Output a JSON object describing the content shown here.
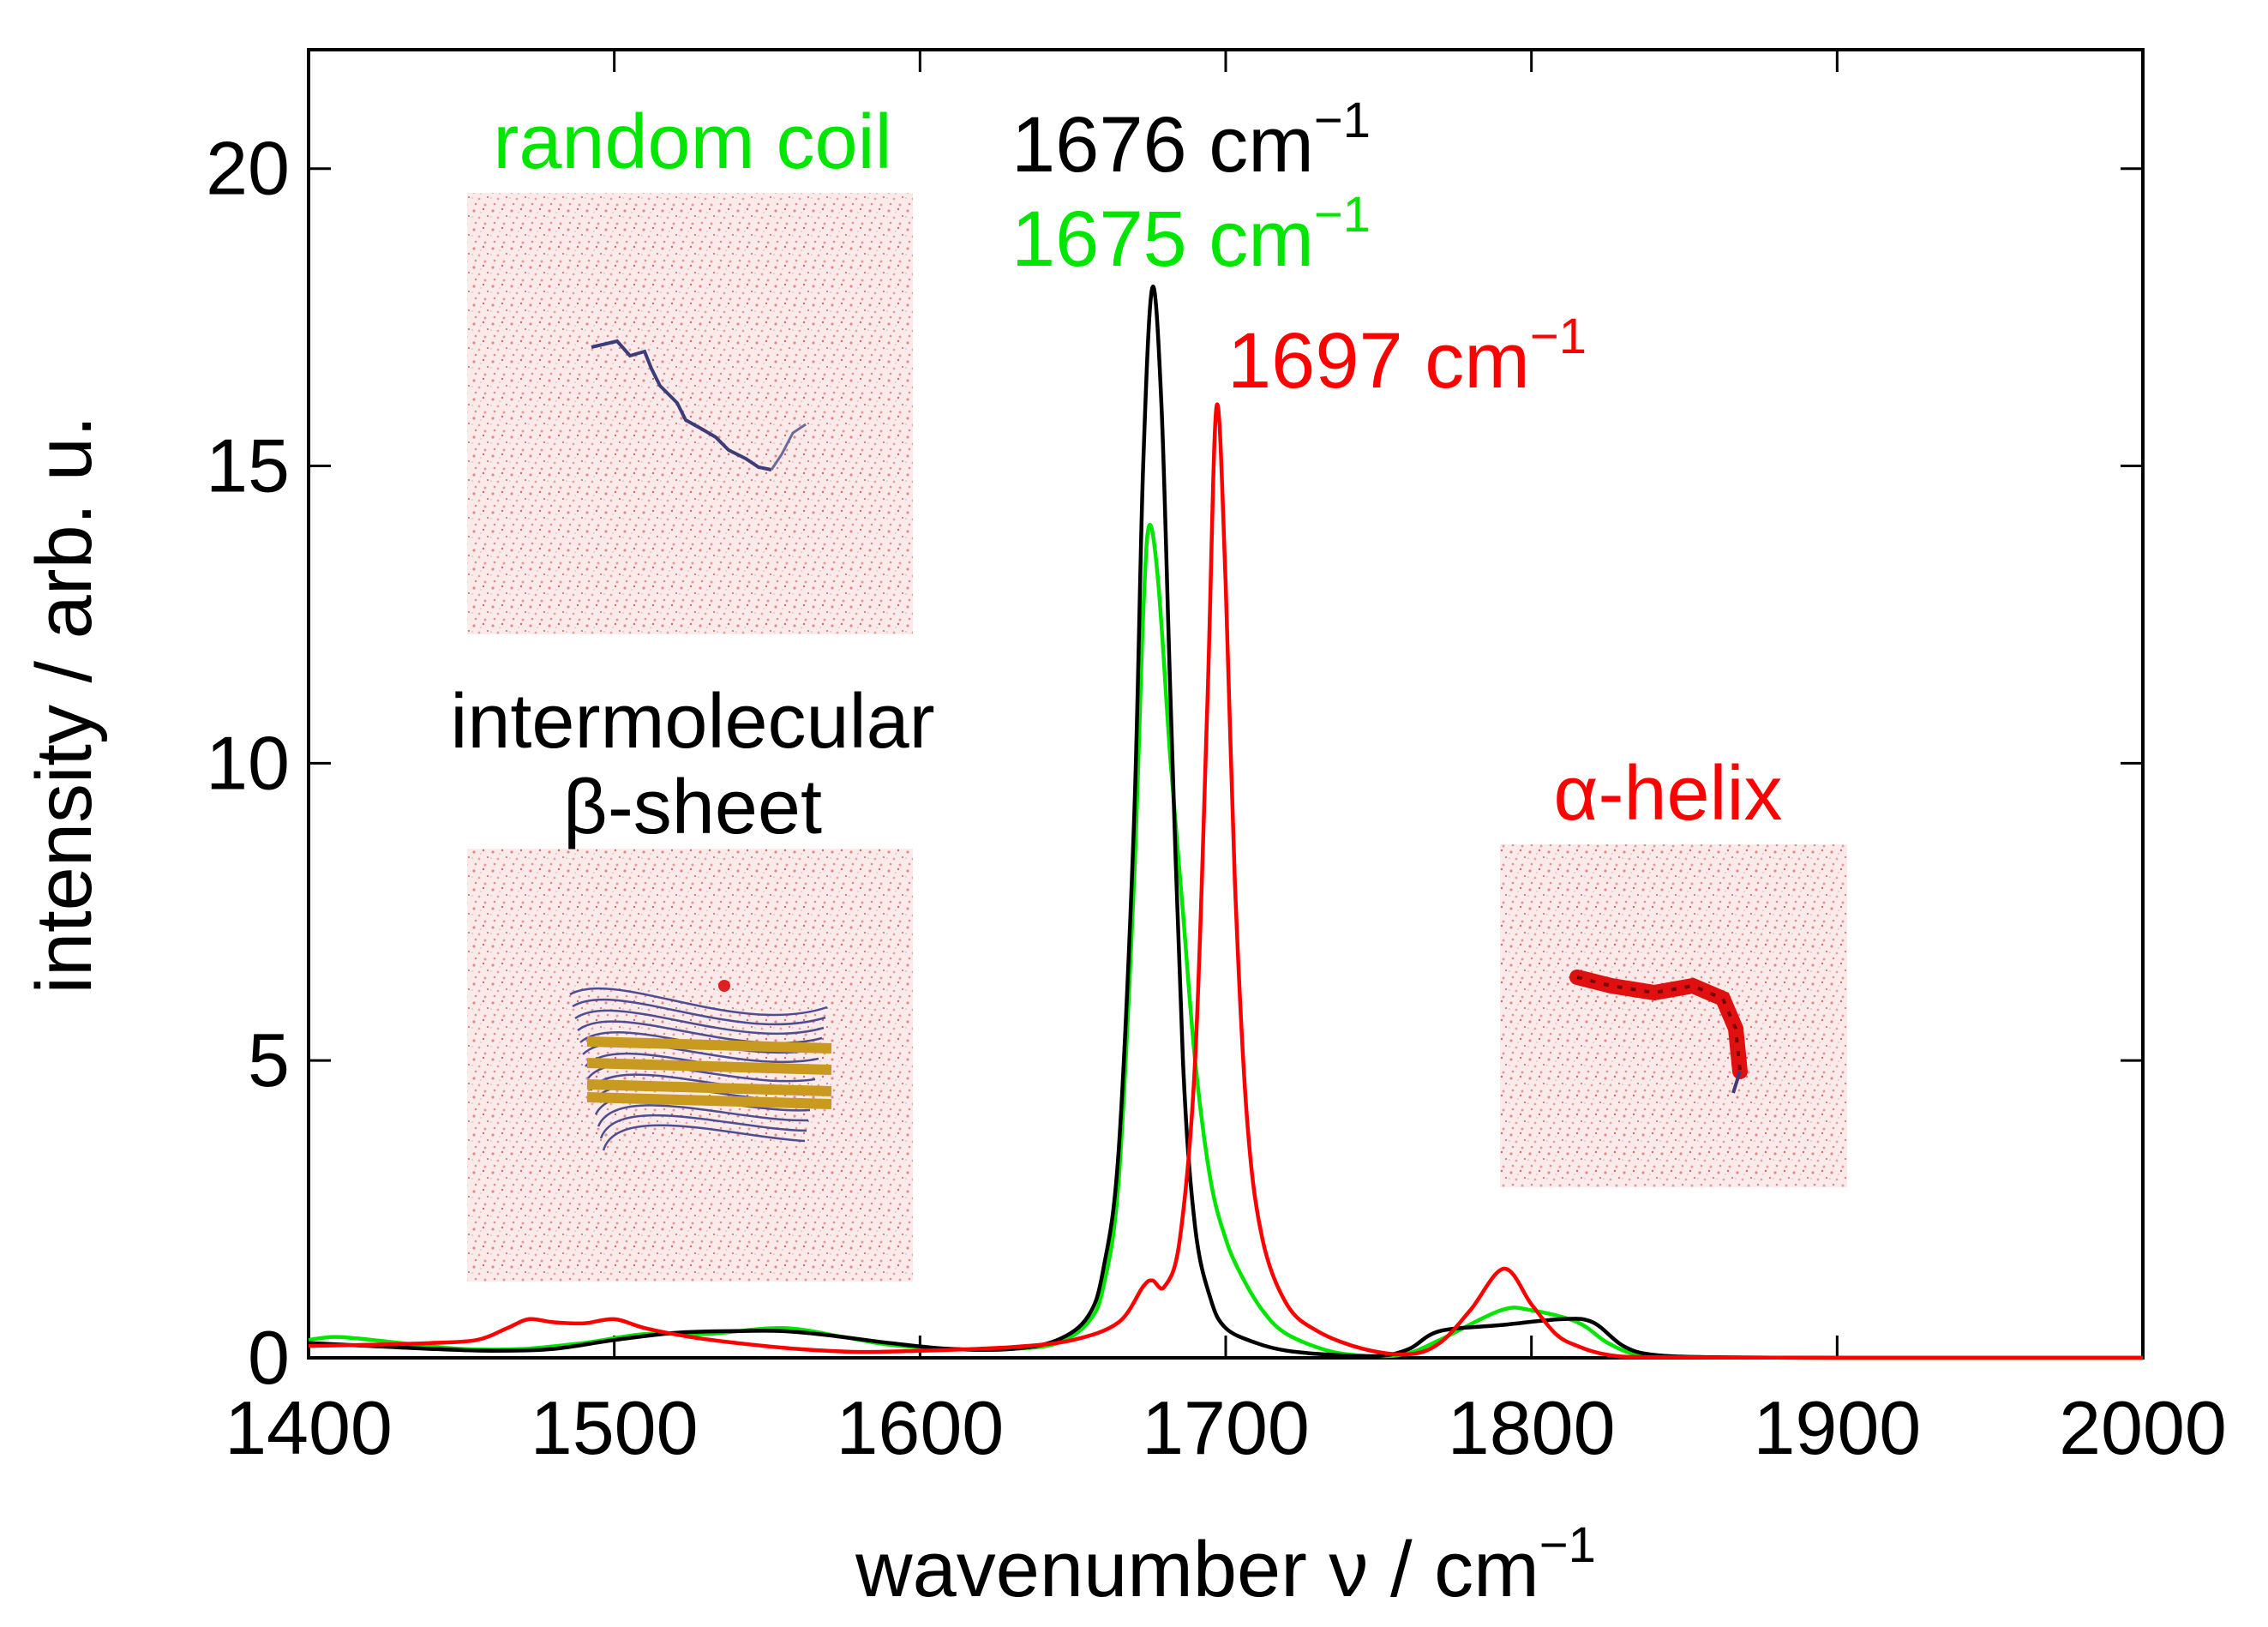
{
  "chart_data": {
    "type": "line",
    "title": "",
    "xlabel": "wavenumber ν / cm",
    "xlabel_sup": "−1",
    "ylabel": "intensity / arb. u.",
    "xlim": [
      1400,
      2000
    ],
    "ylim": [
      0,
      22
    ],
    "x_ticks": [
      1400,
      1500,
      1600,
      1700,
      1800,
      1900,
      2000
    ],
    "x_tick_labels": [
      "1400",
      "1500",
      "1600",
      "1700",
      "1800",
      "1900",
      "2000"
    ],
    "y_ticks": [
      0,
      5,
      10,
      15,
      20
    ],
    "y_tick_labels": [
      "0",
      "5",
      "10",
      "15",
      "20"
    ],
    "grid": false,
    "series": [
      {
        "name": "intermolecular β-sheet",
        "color": "#000000",
        "x": [
          1400,
          1420,
          1440,
          1460,
          1480,
          1500,
          1520,
          1540,
          1555,
          1570,
          1590,
          1610,
          1630,
          1645,
          1655,
          1660,
          1665,
          1670,
          1673,
          1676,
          1679,
          1682,
          1686,
          1690,
          1695,
          1700,
          1710,
          1720,
          1735,
          1750,
          1760,
          1770,
          1790,
          1810,
          1820,
          1830,
          1840,
          1860,
          1900,
          2000
        ],
        "y": [
          0.25,
          0.2,
          0.15,
          0.12,
          0.15,
          0.3,
          0.42,
          0.45,
          0.45,
          0.38,
          0.25,
          0.15,
          0.15,
          0.3,
          0.7,
          1.5,
          3.5,
          9.0,
          15.0,
          18.0,
          16.0,
          11.0,
          5.0,
          2.2,
          1.0,
          0.5,
          0.25,
          0.12,
          0.05,
          0.03,
          0.15,
          0.45,
          0.55,
          0.65,
          0.6,
          0.2,
          0.05,
          0.01,
          0.0,
          0.0
        ]
      },
      {
        "name": "random coil",
        "color": "#00e600",
        "x": [
          1400,
          1410,
          1430,
          1450,
          1470,
          1490,
          1510,
          1530,
          1555,
          1575,
          1590,
          1610,
          1630,
          1645,
          1655,
          1660,
          1665,
          1670,
          1673,
          1675,
          1678,
          1682,
          1686,
          1690,
          1695,
          1700,
          1705,
          1712,
          1720,
          1735,
          1750,
          1760,
          1770,
          1790,
          1800,
          1815,
          1825,
          1835,
          1850,
          1900,
          2000
        ],
        "y": [
          0.3,
          0.35,
          0.25,
          0.15,
          0.15,
          0.25,
          0.4,
          0.4,
          0.5,
          0.35,
          0.22,
          0.15,
          0.15,
          0.25,
          0.6,
          1.2,
          3.0,
          8.0,
          12.5,
          14.0,
          13.0,
          10.0,
          7.5,
          5.0,
          3.0,
          2.0,
          1.4,
          0.8,
          0.4,
          0.1,
          0.03,
          0.08,
          0.3,
          0.8,
          0.8,
          0.6,
          0.25,
          0.05,
          0.01,
          0.0,
          0.0
        ]
      },
      {
        "name": "α-helix",
        "color": "#ff0000",
        "x": [
          1400,
          1420,
          1440,
          1455,
          1465,
          1472,
          1480,
          1490,
          1500,
          1510,
          1525,
          1540,
          1560,
          1580,
          1600,
          1630,
          1650,
          1665,
          1673,
          1676,
          1680,
          1685,
          1690,
          1694,
          1697,
          1700,
          1703,
          1707,
          1712,
          1720,
          1730,
          1745,
          1760,
          1770,
          1780,
          1791,
          1800,
          1808,
          1815,
          1825,
          1840,
          1900,
          2000
        ],
        "y": [
          0.2,
          0.22,
          0.25,
          0.3,
          0.5,
          0.65,
          0.6,
          0.58,
          0.65,
          0.5,
          0.35,
          0.25,
          0.15,
          0.1,
          0.12,
          0.18,
          0.3,
          0.6,
          1.2,
          1.3,
          1.2,
          2.0,
          5.0,
          11.0,
          16.0,
          13.0,
          8.0,
          4.0,
          2.0,
          0.9,
          0.45,
          0.15,
          0.06,
          0.25,
          0.8,
          1.5,
          0.9,
          0.4,
          0.2,
          0.05,
          0.01,
          0.0,
          0.0
        ]
      }
    ],
    "annotations": [
      {
        "name": "peak-label-black",
        "text": "1676 cm",
        "sup": "−1",
        "color": "#000000"
      },
      {
        "name": "peak-label-green",
        "text": "1675 cm",
        "sup": "−1",
        "color": "#00e600"
      },
      {
        "name": "peak-label-red",
        "text": "1697 cm",
        "sup": "−1",
        "color": "#ff0000"
      },
      {
        "name": "label-random-coil",
        "text": "random coil",
        "color": "#00e600"
      },
      {
        "name": "label-intermolecular",
        "text": "intermolecular",
        "color": "#000000"
      },
      {
        "name": "label-beta-sheet",
        "text": "β-sheet",
        "color": "#000000"
      },
      {
        "name": "label-alpha-helix",
        "text": "α-helix",
        "color": "#ff0000"
      }
    ],
    "insets": [
      {
        "name": "inset-random-coil",
        "depicts": "protein-chain-in-water-box",
        "structure": "random coil"
      },
      {
        "name": "inset-beta-sheet",
        "depicts": "protein-chain-in-water-box",
        "structure": "intermolecular β-sheet"
      },
      {
        "name": "inset-alpha-helix",
        "depicts": "protein-chain-in-water-box",
        "structure": "α-helix"
      }
    ]
  }
}
